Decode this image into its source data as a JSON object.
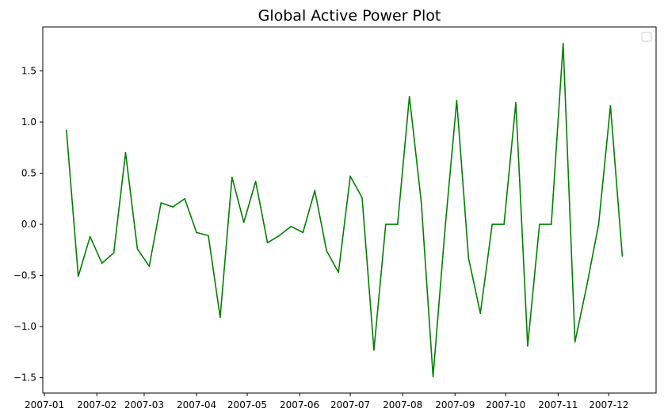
{
  "chart_data": {
    "type": "line",
    "title": "Global Active Power Plot",
    "xlabel": "",
    "ylabel": "",
    "legend": {
      "placement": "top-right",
      "entries": []
    },
    "grid": false,
    "ylim": [
      -1.65,
      1.93
    ],
    "xlim": [
      "2006-12-31",
      "2007-12-29"
    ],
    "x_ticks": [
      {
        "date": "2007-01-01",
        "label": "2007-01"
      },
      {
        "date": "2007-02-01",
        "label": "2007-02"
      },
      {
        "date": "2007-03-01",
        "label": "2007-03"
      },
      {
        "date": "2007-04-01",
        "label": "2007-04"
      },
      {
        "date": "2007-05-01",
        "label": "2007-05"
      },
      {
        "date": "2007-06-01",
        "label": "2007-06"
      },
      {
        "date": "2007-07-01",
        "label": "2007-07"
      },
      {
        "date": "2007-08-01",
        "label": "2007-08"
      },
      {
        "date": "2007-09-01",
        "label": "2007-09"
      },
      {
        "date": "2007-10-01",
        "label": "2007-10"
      },
      {
        "date": "2007-11-01",
        "label": "2007-11"
      },
      {
        "date": "2007-12-01",
        "label": "2007-12"
      }
    ],
    "y_ticks": [
      {
        "value": -1.5,
        "label": "−1.5"
      },
      {
        "value": -1.0,
        "label": "−1.0"
      },
      {
        "value": -0.5,
        "label": "−0.5"
      },
      {
        "value": 0.0,
        "label": "0.0"
      },
      {
        "value": 0.5,
        "label": "0.5"
      },
      {
        "value": 1.0,
        "label": "1.0"
      },
      {
        "value": 1.5,
        "label": "1.5"
      }
    ],
    "series": [
      {
        "color": "#008000",
        "x": [
          "2007-01-14",
          "2007-01-21",
          "2007-01-28",
          "2007-02-04",
          "2007-02-11",
          "2007-02-18",
          "2007-02-25",
          "2007-03-04",
          "2007-03-11",
          "2007-03-18",
          "2007-03-25",
          "2007-04-01",
          "2007-04-08",
          "2007-04-15",
          "2007-04-22",
          "2007-04-29",
          "2007-05-06",
          "2007-05-13",
          "2007-05-20",
          "2007-05-27",
          "2007-06-03",
          "2007-06-10",
          "2007-06-17",
          "2007-06-24",
          "2007-07-01",
          "2007-07-08",
          "2007-07-15",
          "2007-07-22",
          "2007-07-29",
          "2007-08-05",
          "2007-08-12",
          "2007-08-19",
          "2007-08-26",
          "2007-09-02",
          "2007-09-09",
          "2007-09-16",
          "2007-09-23",
          "2007-09-30",
          "2007-10-07",
          "2007-10-14",
          "2007-10-21",
          "2007-10-28",
          "2007-11-04",
          "2007-11-11",
          "2007-11-18",
          "2007-11-25",
          "2007-12-02",
          "2007-12-09"
        ],
        "values": [
          0.92,
          -0.51,
          -0.12,
          -0.38,
          -0.28,
          0.7,
          -0.24,
          -0.41,
          0.21,
          0.17,
          0.25,
          -0.08,
          -0.11,
          -0.91,
          0.46,
          0.02,
          0.42,
          -0.18,
          -0.11,
          -0.02,
          -0.08,
          0.33,
          -0.26,
          -0.47,
          0.47,
          0.26,
          -1.23,
          0.0,
          0.0,
          1.25,
          0.22,
          -1.49,
          -0.06,
          1.21,
          -0.33,
          -0.87,
          0.0,
          0.0,
          1.19,
          -1.19,
          0.0,
          0.0,
          1.77,
          -1.15,
          -0.6,
          0.0,
          1.16,
          -0.31
        ]
      }
    ]
  }
}
